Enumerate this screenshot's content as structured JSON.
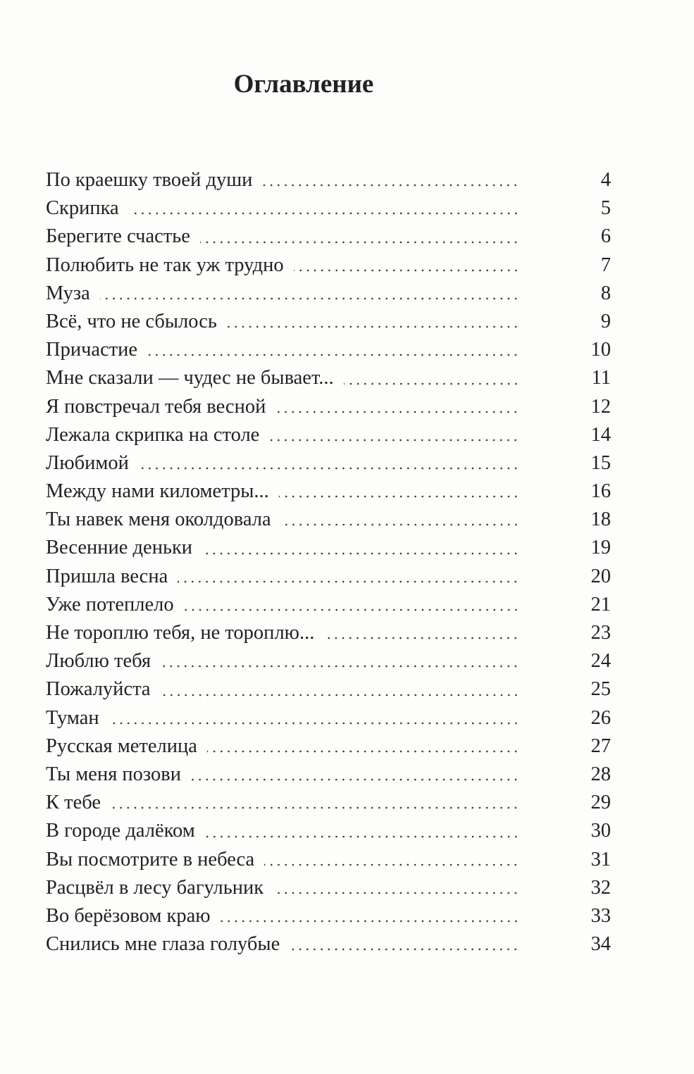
{
  "title": "Оглавление",
  "entries": [
    {
      "title": "По краешку твоей души",
      "page": "4"
    },
    {
      "title": "Скрипка",
      "page": "5"
    },
    {
      "title": "Берегите счастье",
      "page": "6"
    },
    {
      "title": "Полюбить не так уж трудно",
      "page": "7"
    },
    {
      "title": "Муза",
      "page": "8"
    },
    {
      "title": "Всё, что не сбылось",
      "page": "9"
    },
    {
      "title": "Причастие",
      "page": "10"
    },
    {
      "title": "Мне сказали — чудес не бывает...",
      "page": "11"
    },
    {
      "title": "Я повстречал тебя весной",
      "page": "12"
    },
    {
      "title": "Лежала скрипка на столе",
      "page": "14"
    },
    {
      "title": "Любимой",
      "page": "15"
    },
    {
      "title": "Между нами километры...",
      "page": "16"
    },
    {
      "title": "Ты навек меня околдовала",
      "page": "18"
    },
    {
      "title": "Весенние деньки",
      "page": "19"
    },
    {
      "title": "Пришла весна",
      "page": "20"
    },
    {
      "title": "Уже потеплело",
      "page": "21"
    },
    {
      "title": "Не тороплю тебя, не тороплю...",
      "page": "23"
    },
    {
      "title": "Люблю тебя",
      "page": "24"
    },
    {
      "title": "Пожалуйста",
      "page": "25"
    },
    {
      "title": "Туман",
      "page": "26"
    },
    {
      "title": "Русская метелица",
      "page": "27"
    },
    {
      "title": "Ты меня позови",
      "page": "28"
    },
    {
      "title": "К тебе",
      "page": "29"
    },
    {
      "title": "В городе далёком",
      "page": "30"
    },
    {
      "title": "Вы посмотрите в небеса",
      "page": "31"
    },
    {
      "title": "Расцвёл в лесу багульник",
      "page": "32"
    },
    {
      "title": "Во берёзовом краю",
      "page": "33"
    },
    {
      "title": "Снились мне глаза голубые",
      "page": "34"
    }
  ]
}
